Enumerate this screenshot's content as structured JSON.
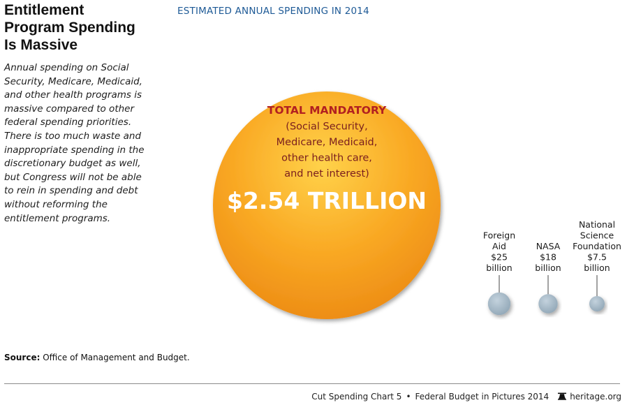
{
  "title_lines": [
    "Entitlement",
    "Program Spending",
    "Is Massive"
  ],
  "description_lines": [
    "Annual spending on Social",
    "Security, Medicare, Medicaid,",
    "and other health programs is",
    "massive compared to other",
    "federal spending priorities.",
    "There is too much waste and",
    "inappropriate spending in the",
    "discretionary budget as well,",
    "but Congress will not be able",
    "to rein in spending and debt",
    "without reforming the",
    "entitlement programs."
  ],
  "chart_heading": "ESTIMATED ANNUAL SPENDING IN 2014",
  "chart_data": {
    "type": "bubble",
    "title": "ESTIMATED ANNUAL SPENDING IN 2014",
    "unit": "billions of dollars",
    "items": [
      {
        "name": "Total Mandatory",
        "value": 2540,
        "label_lines": [
          "TOTAL MANDATORY",
          "(Social Security,",
          "Medicare, Medicaid,",
          "other health care,",
          "and net interest)"
        ],
        "value_label": "$2.54 TRILLION",
        "color": "#f7a21b"
      },
      {
        "name": "Foreign Aid",
        "value": 25,
        "label_lines": [
          "Foreign",
          "Aid",
          "$25",
          "billion"
        ],
        "color": "#9eb3c2"
      },
      {
        "name": "NASA",
        "value": 18,
        "label_lines": [
          "NASA",
          "$18",
          "billion"
        ],
        "color": "#9eb3c2"
      },
      {
        "name": "National Science Foundation",
        "value": 7.5,
        "label_lines": [
          "National",
          "Science",
          "Foundation",
          "$7.5",
          "billion"
        ],
        "color": "#9eb3c2"
      }
    ]
  },
  "colors": {
    "heading_blue": "#1e5a96",
    "label_red": "#b22020",
    "label_dark_red": "#7a1e1e"
  },
  "source_label": "Source:",
  "source_text": "Office of Management and Budget.",
  "footer": {
    "chart_ref": "Cut Spending Chart 5",
    "separator": "•",
    "publication": "Federal Budget in Pictures 2014",
    "site": "heritage.org"
  }
}
